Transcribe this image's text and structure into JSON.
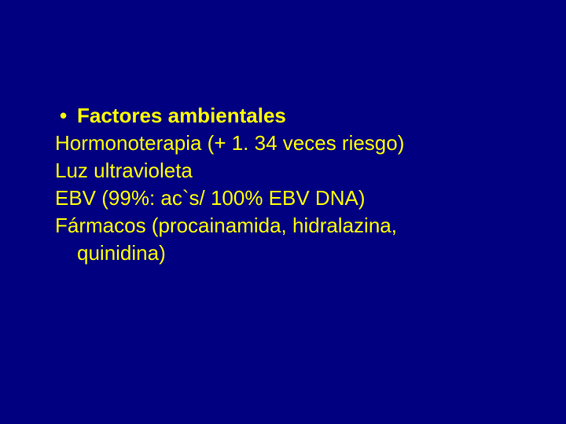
{
  "slide": {
    "background_color": "#000080",
    "text_color": "#ffff00",
    "font_family": "Arial",
    "title_fontsize": 26,
    "body_fontsize": 26,
    "bullet_item": "Factores ambientales",
    "lines": [
      "Hormonoterapia (+ 1. 34 veces riesgo)",
      "Luz ultravioleta",
      "EBV (99%: ac`s/ 100% EBV DNA)",
      "Fármacos (procainamida, hidralazina,",
      "quinidina)"
    ]
  }
}
